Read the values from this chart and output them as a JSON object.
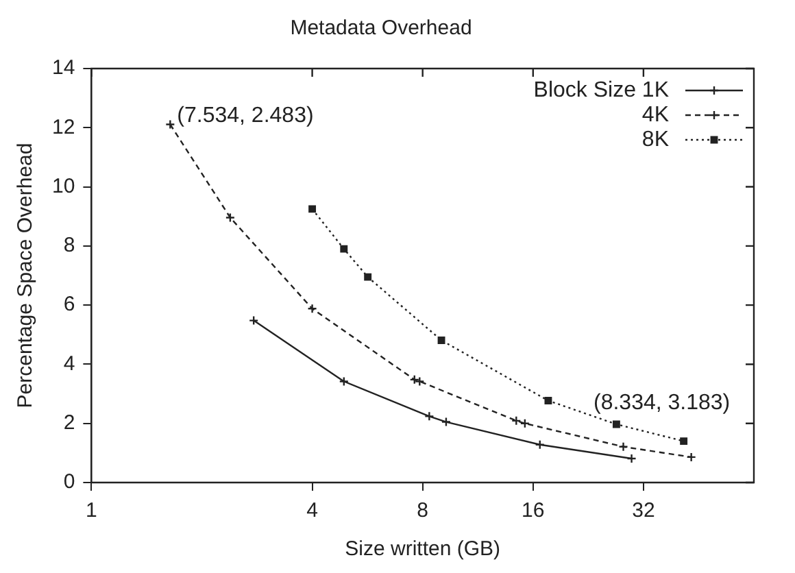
{
  "chart_data": {
    "type": "line",
    "title": "Metadata Overhead",
    "xlabel": "Size written (GB)",
    "ylabel": "Percentage Space Overhead",
    "log": "x",
    "xlim": [
      1,
      64
    ],
    "xticks": [
      1,
      4,
      8,
      16,
      32
    ],
    "ylim": [
      0,
      14
    ],
    "yticks": [
      0,
      2,
      4,
      6,
      8,
      10,
      12,
      14
    ],
    "grid": false,
    "legend": "top right",
    "series": [
      {
        "name": "Block Size 1K",
        "color": "#222222",
        "line_style": "solid",
        "marker": "cross",
        "x": [
          2.77,
          4.88,
          8.34,
          9.27,
          16.7,
          29.7
        ],
        "values": [
          5.48,
          3.42,
          2.24,
          2.05,
          1.28,
          0.81
        ]
      },
      {
        "name": "4K",
        "color": "#222222",
        "line_style": "dashed",
        "marker": "cross",
        "x": [
          1.64,
          2.39,
          4.0,
          7.6,
          7.85,
          14.4,
          15.2,
          28.2,
          43.2
        ],
        "values": [
          12.11,
          8.96,
          5.88,
          3.48,
          3.42,
          2.09,
          2.0,
          1.21,
          0.86
        ]
      },
      {
        "name": "8K",
        "color": "#222222",
        "line_style": "dotted",
        "marker": "square",
        "x": [
          4.0,
          4.88,
          5.67,
          9.0,
          17.6,
          27,
          41.2
        ],
        "values": [
          9.25,
          7.9,
          6.95,
          4.81,
          2.77,
          1.97,
          1.4
        ]
      }
    ],
    "annotations": [
      {
        "text": "(7.534, 2.483)",
        "x": 1.64,
        "y": 12.11
      },
      {
        "text": "(8.334, 3.183)",
        "x": 22.4,
        "y": 2.4
      }
    ]
  }
}
